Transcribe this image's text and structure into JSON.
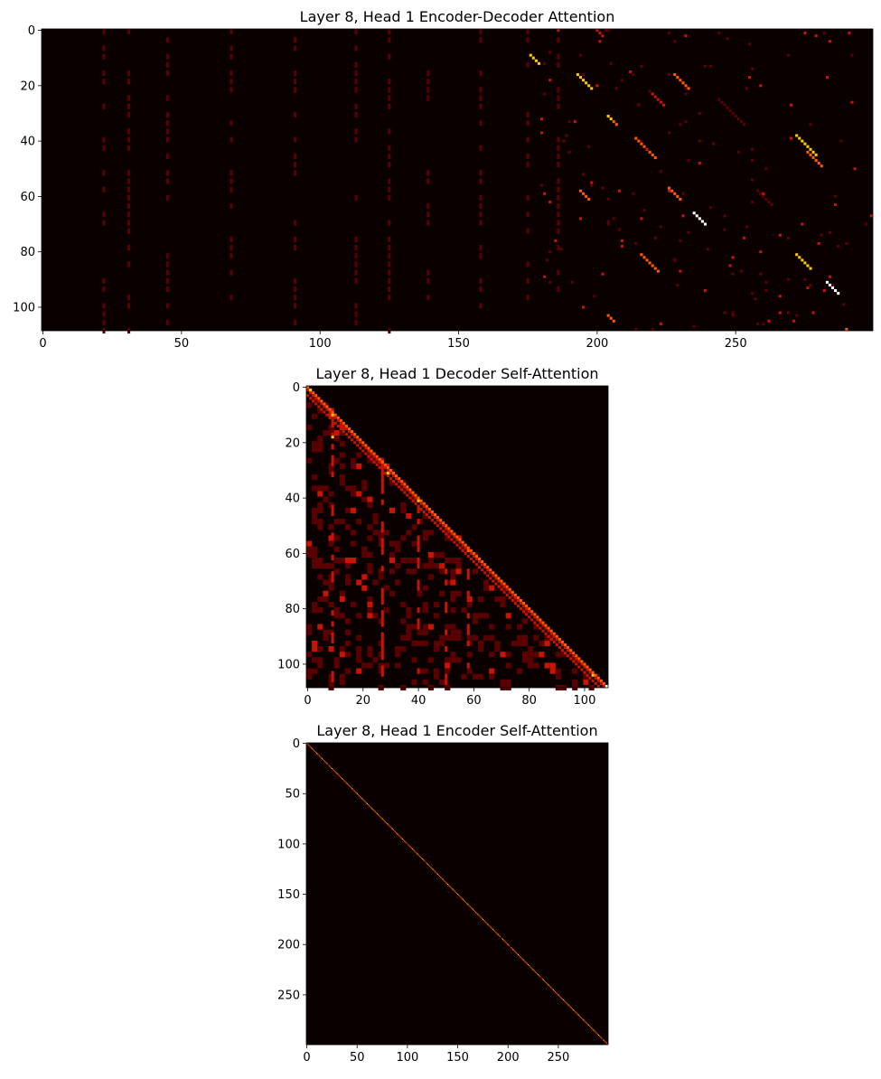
{
  "chart_data": [
    {
      "type": "heatmap",
      "title": "Layer 8, Head 1 Encoder-Decoder Attention",
      "xlabel": "",
      "ylabel": "",
      "n_cols": 300,
      "n_rows": 109,
      "x_ticks": [
        0,
        50,
        100,
        150,
        200,
        250
      ],
      "y_ticks": [
        0,
        20,
        40,
        60,
        80,
        100
      ],
      "colormap": "hot",
      "colors": [
        "#0a0000",
        "#5a0000",
        "#c81400",
        "#ff5a00",
        "#ffc800",
        "#ffffff"
      ],
      "pattern": "sparse alignment segments in columns 175-300; faint vertical stripes elsewhere"
    },
    {
      "type": "heatmap",
      "title": "Layer 8, Head 1 Decoder Self-Attention",
      "xlabel": "",
      "ylabel": "",
      "n_cols": 109,
      "n_rows": 109,
      "x_ticks": [
        0,
        20,
        40,
        60,
        80,
        100
      ],
      "y_ticks": [
        0,
        20,
        40,
        60,
        80,
        100
      ],
      "colormap": "hot",
      "pattern": "lower-triangular (causal) with bright diagonal"
    },
    {
      "type": "heatmap",
      "title": "Layer 8, Head 1 Encoder Self-Attention",
      "xlabel": "",
      "ylabel": "",
      "n_cols": 300,
      "n_rows": 300,
      "x_ticks": [
        0,
        50,
        100,
        150,
        200,
        250
      ],
      "y_ticks": [
        0,
        50,
        100,
        150,
        200,
        250
      ],
      "colormap": "hot",
      "pattern": "strong main diagonal on near-black background"
    }
  ]
}
